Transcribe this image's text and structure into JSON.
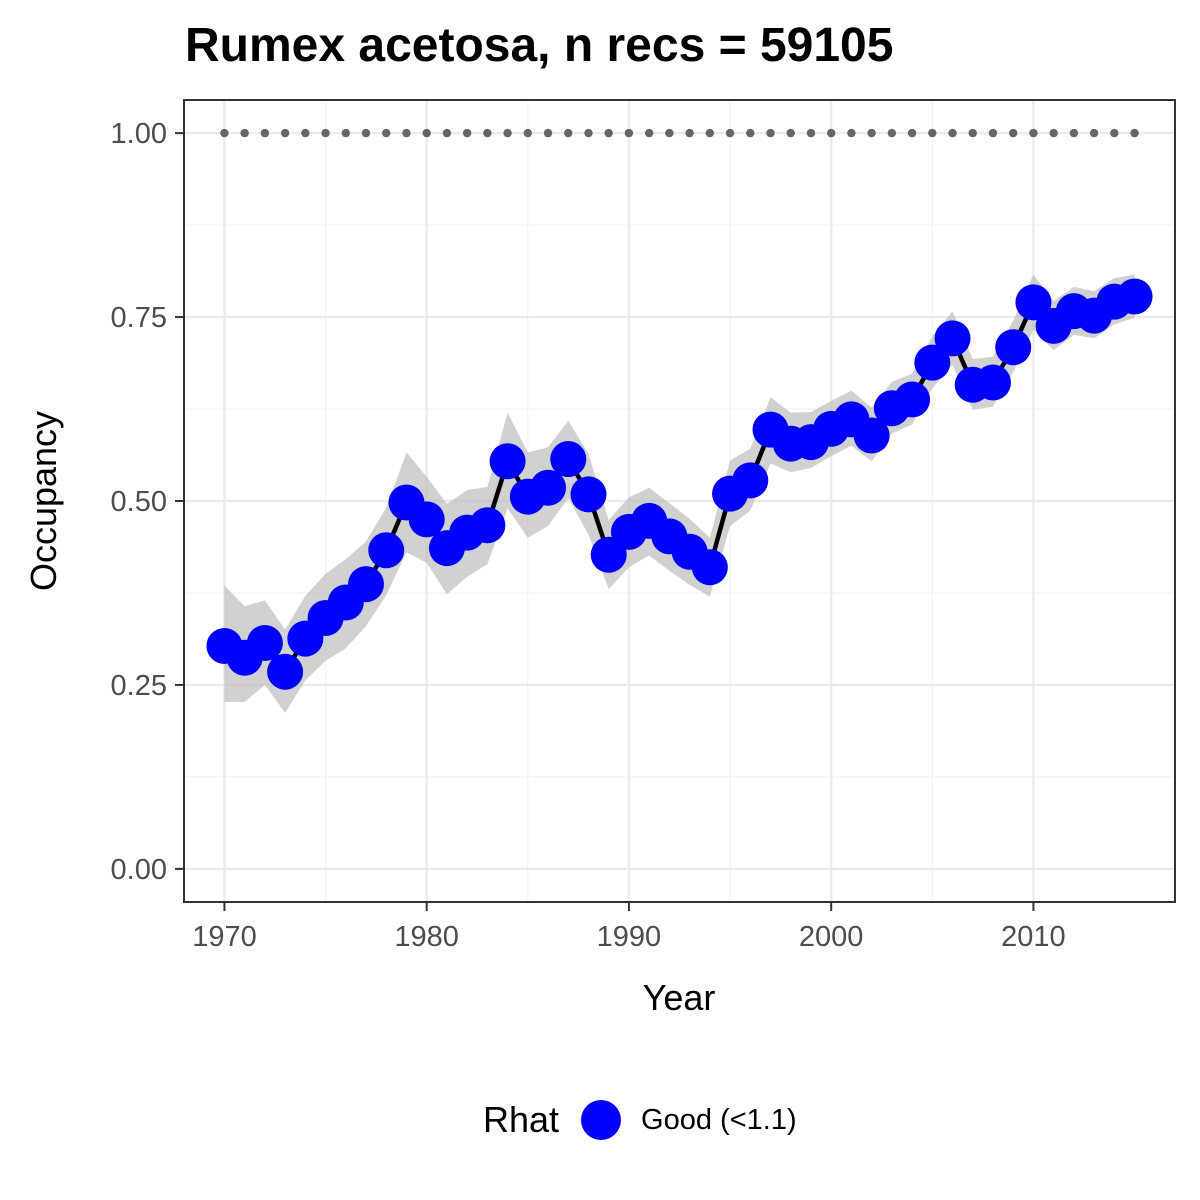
{
  "chart_data": {
    "type": "line",
    "title": "Rumex acetosa, n recs = 59105",
    "xlabel": "Year",
    "ylabel": "Occupancy",
    "xlim": [
      1968,
      2017
    ],
    "ylim": [
      -0.045,
      1.045
    ],
    "x_ticks": [
      1970,
      1980,
      1990,
      2000,
      2010
    ],
    "y_ticks": [
      "0.00",
      "0.25",
      "0.50",
      "0.75",
      "1.00"
    ],
    "grid": true,
    "legend_position": "bottom",
    "legend": {
      "title": "Rhat",
      "entries": [
        {
          "label": "Good (<1.1)",
          "color": "#0000ff"
        }
      ]
    },
    "colors": {
      "points": "#0000ff",
      "line": "#000000",
      "ribbon": "#bebebe",
      "reference": "#666666"
    },
    "reference_line": {
      "y": 1.0,
      "style": "dotted"
    },
    "series": [
      {
        "x": [
          1970,
          1971,
          1972,
          1973,
          1974,
          1975,
          1976,
          1977,
          1978,
          1979,
          1980,
          1981,
          1982,
          1983,
          1984,
          1985,
          1986,
          1987,
          1988,
          1989,
          1990,
          1991,
          1992,
          1993,
          1994,
          1995,
          1996,
          1997,
          1998,
          1999,
          2000,
          2001,
          2002,
          2003,
          2004,
          2005,
          2006,
          2007,
          2008,
          2009,
          2010,
          2011,
          2012,
          2013,
          2014,
          2015
        ],
        "y": [
          0.303,
          0.287,
          0.307,
          0.268,
          0.313,
          0.341,
          0.362,
          0.387,
          0.433,
          0.498,
          0.475,
          0.436,
          0.457,
          0.467,
          0.554,
          0.506,
          0.518,
          0.557,
          0.509,
          0.427,
          0.458,
          0.473,
          0.452,
          0.431,
          0.41,
          0.51,
          0.528,
          0.597,
          0.578,
          0.58,
          0.598,
          0.611,
          0.589,
          0.626,
          0.638,
          0.688,
          0.721,
          0.658,
          0.661,
          0.709,
          0.77,
          0.738,
          0.758,
          0.752,
          0.771,
          0.778
        ],
        "lower": [
          0.227,
          0.227,
          0.25,
          0.212,
          0.256,
          0.283,
          0.3,
          0.33,
          0.372,
          0.43,
          0.416,
          0.373,
          0.397,
          0.414,
          0.49,
          0.45,
          0.466,
          0.504,
          0.454,
          0.38,
          0.41,
          0.426,
          0.405,
          0.386,
          0.37,
          0.466,
          0.487,
          0.551,
          0.539,
          0.545,
          0.561,
          0.575,
          0.554,
          0.592,
          0.604,
          0.653,
          0.685,
          0.624,
          0.628,
          0.675,
          0.733,
          0.705,
          0.726,
          0.721,
          0.74,
          0.749
        ],
        "upper": [
          0.385,
          0.357,
          0.365,
          0.325,
          0.371,
          0.401,
          0.421,
          0.445,
          0.491,
          0.566,
          0.533,
          0.496,
          0.515,
          0.519,
          0.62,
          0.566,
          0.573,
          0.609,
          0.564,
          0.474,
          0.505,
          0.518,
          0.497,
          0.476,
          0.45,
          0.555,
          0.571,
          0.641,
          0.62,
          0.621,
          0.636,
          0.65,
          0.627,
          0.662,
          0.673,
          0.724,
          0.758,
          0.693,
          0.696,
          0.745,
          0.808,
          0.772,
          0.791,
          0.785,
          0.803,
          0.808
        ],
        "reference": 1.0
      }
    ]
  }
}
